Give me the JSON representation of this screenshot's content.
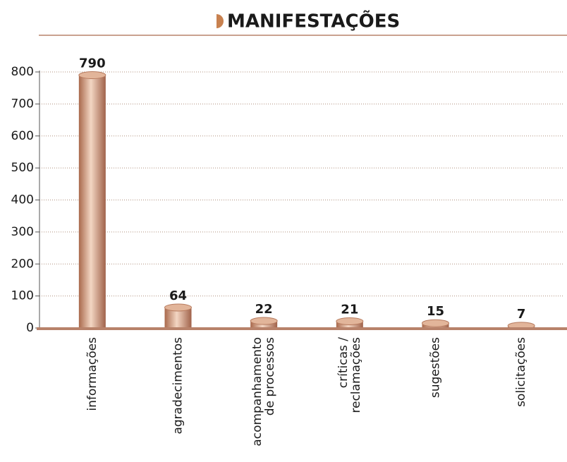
{
  "chart_data": {
    "type": "bar",
    "title": "MANIFESTAÇÕES",
    "categories": [
      "informações",
      "agradecimentos",
      "acompanhamento\nde processos",
      "críticas /\nreclamações",
      "sugestões",
      "solicitações"
    ],
    "values": [
      790,
      64,
      22,
      21,
      15,
      7
    ],
    "color": "#c98f6f",
    "ylim": [
      0,
      800
    ],
    "yticks": [
      0,
      100,
      200,
      300,
      400,
      500,
      600,
      700,
      800
    ],
    "grid": true
  }
}
